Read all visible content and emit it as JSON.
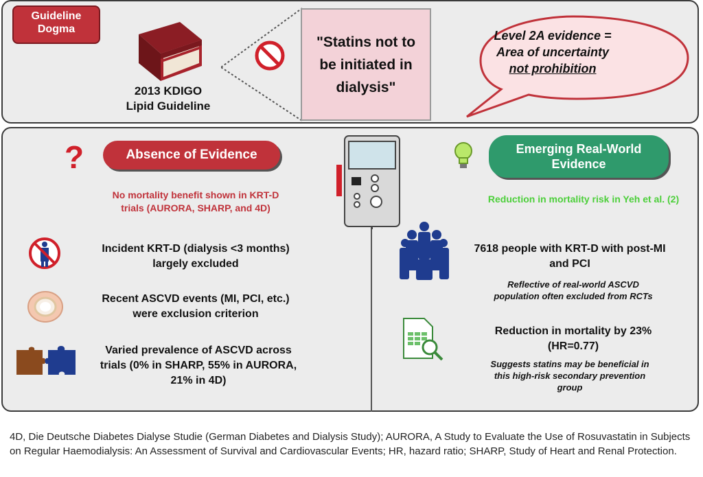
{
  "top": {
    "tag": "Guideline\nDogma",
    "book_label": "2013 KDIGO\nLipid Guideline",
    "quote": "\"Statins not to\nbe initiated in\ndialysis\"",
    "bubble": {
      "line1": "Level 2A evidence =",
      "line2": "Area of uncertainty",
      "line3": "not prohibition"
    }
  },
  "left": {
    "title": "Absence of Evidence",
    "subtitle": "No mortality benefit shown in KRT-D\ntrials (AURORA, SHARP, and 4D)",
    "items": [
      {
        "text": "Incident KRT-D (dialysis <3 months)\nlargely excluded"
      },
      {
        "text": "Recent ASCVD events (MI, PCI, etc.)\nwere exclusion criterion"
      },
      {
        "text": "Varied prevalence of ASCVD across\ntrials (0% in SHARP, 55% in AURORA,\n21% in 4D)"
      }
    ]
  },
  "right": {
    "title": "Emerging Real-World\nEvidence",
    "subtitle": "Reduction in mortality risk in Yeh et al. (2)",
    "items": [
      {
        "text": "7618 people with KRT-D with post-MI\nand PCI",
        "sub": "Reflective of real-world ASCVD\npopulation often excluded from RCTs"
      },
      {
        "text": "Reduction in mortality  by 23%\n(HR=0.77)",
        "sub": "Suggests statins may be beneficial in\nthis high-risk secondary prevention\ngroup"
      }
    ]
  },
  "footnote": "4D, Die Deutsche Diabetes Dialyse Studie (German Diabetes and Dialysis Study); AURORA, A Study to Evaluate the Use of Rosuvastatin in Subjects on Regular Haemodialysis: An Assessment of Survival and Cardiovascular Events; HR, hazard ratio; SHARP, Study of Heart and Renal Protection.",
  "colors": {
    "red": "#c0323a",
    "green": "#2f9a6c",
    "lightgreen": "#4ccf3a",
    "pink": "#f3d2d8",
    "navy": "#1f3c8f"
  },
  "icons": [
    "book-icon",
    "no-entry-icon",
    "question-mark-icon",
    "dialysis-machine-icon",
    "lightbulb-icon",
    "no-person-icon",
    "artery-icon",
    "puzzle-icon",
    "group-of-people-icon",
    "spreadsheet-search-icon"
  ]
}
